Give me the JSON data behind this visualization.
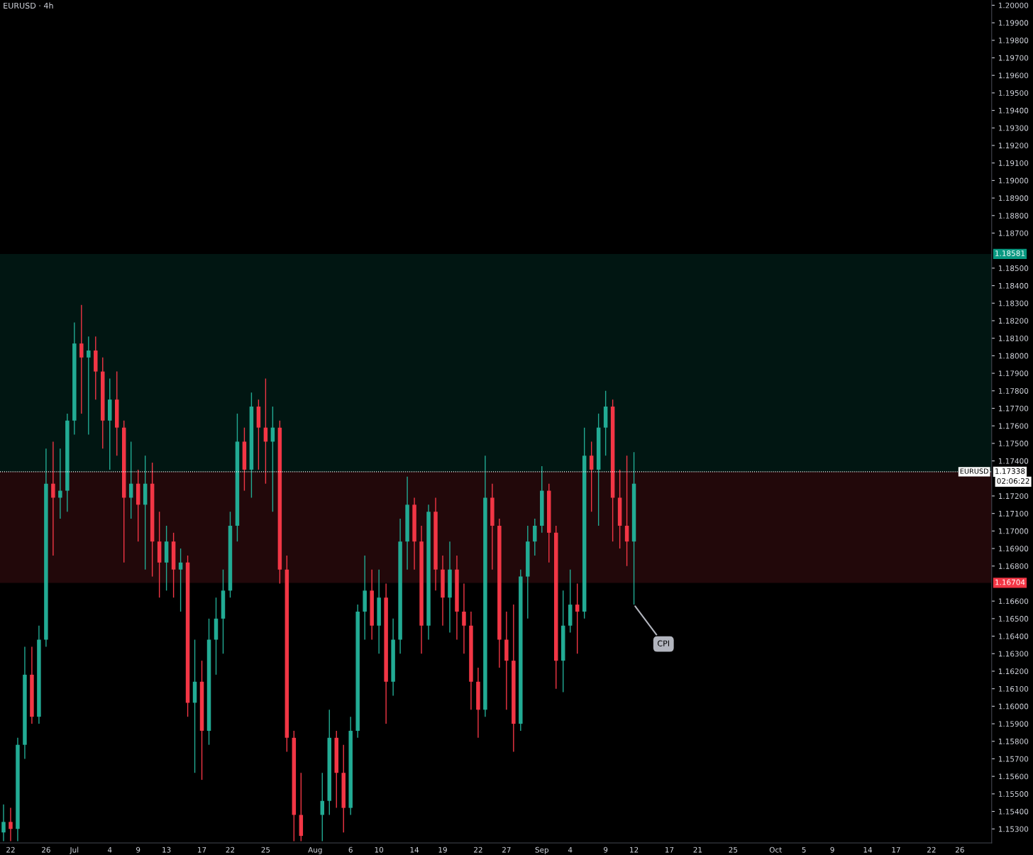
{
  "chart_data": {
    "type": "candlestick",
    "title": "EURUSD · 4h",
    "categories": [
      null,
      "22",
      null,
      null,
      null,
      null,
      "26",
      null,
      null,
      null,
      "Jul",
      null,
      null,
      null,
      null,
      "4",
      null,
      null,
      null,
      "9",
      null,
      null,
      null,
      "13",
      null,
      null,
      null,
      null,
      "17",
      null,
      null,
      null,
      "22",
      null,
      null,
      null,
      null,
      "25",
      null,
      null,
      null,
      null,
      null,
      null,
      "Aug",
      null,
      null,
      null,
      null,
      "6",
      null,
      null,
      null,
      "10",
      null,
      null,
      null,
      null,
      "14",
      null,
      null,
      null,
      "19",
      null,
      null,
      null,
      null,
      "22",
      null,
      null,
      null,
      "27",
      null,
      null,
      null,
      null,
      "Sep",
      null,
      null,
      null,
      "4",
      null,
      null,
      null,
      null,
      "9",
      null,
      null,
      null,
      "12",
      null,
      null,
      null,
      null,
      "17",
      null,
      null,
      null,
      "21",
      null,
      null,
      null,
      null,
      "25",
      null,
      null,
      null,
      null,
      null,
      "Oct",
      null,
      null,
      null,
      "5",
      null,
      null,
      null,
      "9",
      null,
      null,
      null,
      null,
      "14",
      null,
      null,
      null,
      "17",
      null,
      null,
      null,
      null,
      "22",
      null,
      null,
      null,
      "26",
      null,
      null,
      null,
      null
    ],
    "ohlc": [
      [
        1.1528,
        1.1544,
        1.1523,
        1.1534
      ],
      [
        1.1534,
        1.1542,
        1.1523,
        1.153
      ],
      [
        1.153,
        1.1582,
        1.1523,
        1.1578
      ],
      [
        1.1578,
        1.1634,
        1.157,
        1.1618
      ],
      [
        1.1618,
        1.1634,
        1.159,
        1.1594
      ],
      [
        1.1594,
        1.1646,
        1.159,
        1.1638
      ],
      [
        1.1638,
        1.1747,
        1.1634,
        1.1727
      ],
      [
        1.1727,
        1.1751,
        1.1686,
        1.1719
      ],
      [
        1.1719,
        1.1747,
        1.1707,
        1.1723
      ],
      [
        1.1723,
        1.1767,
        1.1711,
        1.1763
      ],
      [
        1.1763,
        1.1819,
        1.1755,
        1.1807
      ],
      [
        1.1807,
        1.1829,
        1.1767,
        1.1799
      ],
      [
        1.1799,
        1.1811,
        1.1755,
        1.1803
      ],
      [
        1.1803,
        1.1811,
        1.1775,
        1.1791
      ],
      [
        1.1791,
        1.1799,
        1.1747,
        1.1763
      ],
      [
        1.1763,
        1.1787,
        1.1735,
        1.1775
      ],
      [
        1.1775,
        1.1791,
        1.1743,
        1.1759
      ],
      [
        1.1759,
        1.1763,
        1.1682,
        1.1719
      ],
      [
        1.1719,
        1.1751,
        1.1707,
        1.1727
      ],
      [
        1.1727,
        1.1735,
        1.1694,
        1.1715
      ],
      [
        1.1715,
        1.1743,
        1.1678,
        1.1727
      ],
      [
        1.1727,
        1.1739,
        1.1674,
        1.1694
      ],
      [
        1.1694,
        1.1711,
        1.1662,
        1.1682
      ],
      [
        1.1682,
        1.1703,
        1.1666,
        1.1694
      ],
      [
        1.1694,
        1.1699,
        1.1662,
        1.1678
      ],
      [
        1.1678,
        1.169,
        1.1654,
        1.1682
      ],
      [
        1.1682,
        1.1686,
        1.1594,
        1.1602
      ],
      [
        1.1602,
        1.1638,
        1.1562,
        1.1614
      ],
      [
        1.1614,
        1.1626,
        1.1558,
        1.1586
      ],
      [
        1.1586,
        1.165,
        1.1578,
        1.1638
      ],
      [
        1.1638,
        1.1662,
        1.1618,
        1.165
      ],
      [
        1.165,
        1.1678,
        1.163,
        1.1666
      ],
      [
        1.1666,
        1.1711,
        1.1662,
        1.1703
      ],
      [
        1.1703,
        1.1767,
        1.1694,
        1.1751
      ],
      [
        1.1751,
        1.1759,
        1.1723,
        1.1735
      ],
      [
        1.1735,
        1.1779,
        1.1719,
        1.1771
      ],
      [
        1.1771,
        1.1775,
        1.1735,
        1.1759
      ],
      [
        1.1759,
        1.1787,
        1.1727,
        1.1751
      ],
      [
        1.1751,
        1.1771,
        1.1711,
        1.1759
      ],
      [
        1.1759,
        1.1763,
        1.167,
        1.1678
      ],
      [
        1.1678,
        1.1686,
        1.1574,
        1.1582
      ],
      [
        1.1582,
        1.1586,
        1.1523,
        1.1538
      ],
      [
        1.1538,
        1.1562,
        1.1523,
        1.1526
      ],
      null,
      null,
      [
        1.1538,
        1.1562,
        1.1523,
        1.1546
      ],
      [
        1.1546,
        1.1598,
        1.1538,
        1.1582
      ],
      [
        1.1582,
        1.1586,
        1.1542,
        1.1562
      ],
      [
        1.1562,
        1.1578,
        1.1528,
        1.1542
      ],
      [
        1.1542,
        1.1594,
        1.1538,
        1.1586
      ],
      [
        1.1586,
        1.1658,
        1.1582,
        1.1654
      ],
      [
        1.1654,
        1.1686,
        1.1638,
        1.1666
      ],
      [
        1.1666,
        1.1678,
        1.1638,
        1.1646
      ],
      [
        1.1646,
        1.1678,
        1.163,
        1.1662
      ],
      [
        1.1662,
        1.167,
        1.159,
        1.1614
      ],
      [
        1.1614,
        1.165,
        1.1606,
        1.1638
      ],
      [
        1.1638,
        1.1707,
        1.163,
        1.1694
      ],
      [
        1.1694,
        1.1731,
        1.1678,
        1.1715
      ],
      [
        1.1715,
        1.1719,
        1.1678,
        1.1694
      ],
      [
        1.1694,
        1.1703,
        1.163,
        1.1646
      ],
      [
        1.1646,
        1.1715,
        1.1638,
        1.1711
      ],
      [
        1.1711,
        1.1719,
        1.1666,
        1.1678
      ],
      [
        1.1678,
        1.1686,
        1.1646,
        1.1662
      ],
      [
        1.1662,
        1.1694,
        1.1642,
        1.1678
      ],
      [
        1.1678,
        1.1686,
        1.1638,
        1.1654
      ],
      [
        1.1654,
        1.167,
        1.163,
        1.1646
      ],
      [
        1.1646,
        1.1654,
        1.1598,
        1.1614
      ],
      [
        1.1614,
        1.1622,
        1.1582,
        1.1598
      ],
      [
        1.1598,
        1.1743,
        1.1594,
        1.1719
      ],
      [
        1.1719,
        1.1727,
        1.1678,
        1.1703
      ],
      [
        1.1703,
        1.1707,
        1.1622,
        1.1638
      ],
      [
        1.1638,
        1.1654,
        1.1598,
        1.1626
      ],
      [
        1.1626,
        1.1658,
        1.1574,
        1.159
      ],
      [
        1.159,
        1.1678,
        1.1586,
        1.1674
      ],
      [
        1.1674,
        1.1703,
        1.165,
        1.1694
      ],
      [
        1.1694,
        1.1707,
        1.1686,
        1.1703
      ],
      [
        1.1703,
        1.1737,
        1.1699,
        1.1723
      ],
      [
        1.1723,
        1.1727,
        1.1682,
        1.1699
      ],
      [
        1.1699,
        1.1703,
        1.161,
        1.1626
      ],
      [
        1.1626,
        1.1666,
        1.1608,
        1.1646
      ],
      [
        1.1646,
        1.1678,
        1.1642,
        1.1658
      ],
      [
        1.1658,
        1.167,
        1.163,
        1.1654
      ],
      [
        1.1654,
        1.1759,
        1.165,
        1.1743
      ],
      [
        1.1743,
        1.1751,
        1.1711,
        1.1735
      ],
      [
        1.1735,
        1.1767,
        1.1703,
        1.1759
      ],
      [
        1.1759,
        1.178,
        1.1743,
        1.1771
      ],
      [
        1.1771,
        1.1775,
        1.1694,
        1.1719
      ],
      [
        1.1719,
        1.1735,
        1.169,
        1.1703
      ],
      [
        1.1703,
        1.1743,
        1.168,
        1.1694
      ],
      [
        1.1694,
        1.1745,
        1.1658,
        1.1727
      ],
      null,
      null,
      null,
      null,
      null,
      null,
      null,
      null,
      null,
      null,
      null,
      null,
      null,
      null,
      null,
      null,
      null,
      null,
      null,
      null,
      null,
      null,
      null,
      null,
      null,
      null,
      null,
      null,
      null,
      null,
      null,
      null,
      null,
      null,
      null,
      null,
      null,
      null,
      null,
      null,
      null,
      null,
      null,
      null,
      null,
      null,
      null,
      null,
      null,
      null
    ],
    "colors": [
      "#22ab94",
      "#f23645",
      "#22ab94",
      "#22ab94",
      "#f23645",
      "#22ab94",
      "#22ab94",
      "#f23645",
      "#22ab94",
      "#22ab94",
      "#22ab94",
      "#f23645",
      "#22ab94",
      "#f23645",
      "#f23645",
      "#22ab94",
      "#f23645",
      "#f23645",
      "#22ab94",
      "#f23645",
      "#22ab94",
      "#f23645",
      "#f23645",
      "#22ab94",
      "#f23645",
      "#22ab94",
      "#f23645",
      "#22ab94",
      "#f23645",
      "#22ab94",
      "#22ab94",
      "#22ab94",
      "#22ab94",
      "#22ab94",
      "#f23645",
      "#22ab94",
      "#f23645",
      "#f23645",
      "#22ab94",
      "#f23645",
      "#f23645",
      "#f23645",
      "#f23645",
      null,
      null,
      "#22ab94",
      "#22ab94",
      "#f23645",
      "#f23645",
      "#22ab94",
      "#22ab94",
      "#22ab94",
      "#f23645",
      "#22ab94",
      "#f23645",
      "#22ab94",
      "#22ab94",
      "#22ab94",
      "#f23645",
      "#f23645",
      "#22ab94",
      "#f23645",
      "#f23645",
      "#22ab94",
      "#f23645",
      "#f23645",
      "#f23645",
      "#f23645",
      "#22ab94",
      "#f23645",
      "#f23645",
      "#f23645",
      "#f23645",
      "#22ab94",
      "#22ab94",
      "#22ab94",
      "#22ab94",
      "#f23645",
      "#f23645",
      "#22ab94",
      "#22ab94",
      "#f23645",
      "#22ab94",
      "#f23645",
      "#22ab94",
      "#22ab94",
      "#f23645",
      "#f23645",
      "#f23645",
      "#22ab94",
      null,
      null,
      null,
      null,
      null,
      null,
      null,
      null,
      null,
      null,
      null,
      null,
      null,
      null,
      null,
      null,
      null,
      null,
      null,
      null,
      null,
      null,
      null,
      null,
      null,
      null,
      null,
      null,
      null,
      null,
      null,
      null,
      null,
      null,
      null,
      null,
      null,
      null,
      null,
      null,
      null,
      null,
      null,
      null,
      null,
      null,
      null,
      null,
      null,
      null
    ],
    "ylim": [
      1.1522,
      1.2003
    ],
    "yticks": [
      {
        "value": 1.153,
        "label": "1.15300"
      },
      {
        "value": 1.154,
        "label": "1.15400"
      },
      {
        "value": 1.155,
        "label": "1.15500"
      },
      {
        "value": 1.156,
        "label": "1.15600"
      },
      {
        "value": 1.157,
        "label": "1.15700"
      },
      {
        "value": 1.158,
        "label": "1.15800"
      },
      {
        "value": 1.159,
        "label": "1.15900"
      },
      {
        "value": 1.16,
        "label": "1.16000"
      },
      {
        "value": 1.161,
        "label": "1.16100"
      },
      {
        "value": 1.162,
        "label": "1.16200"
      },
      {
        "value": 1.163,
        "label": "1.16300"
      },
      {
        "value": 1.164,
        "label": "1.16400"
      },
      {
        "value": 1.165,
        "label": "1.16500"
      },
      {
        "value": 1.166,
        "label": "1.16600"
      },
      {
        "value": 1.168,
        "label": "1.16800"
      },
      {
        "value": 1.169,
        "label": "1.16900"
      },
      {
        "value": 1.17,
        "label": "1.17000"
      },
      {
        "value": 1.171,
        "label": "1.17100"
      },
      {
        "value": 1.172,
        "label": "1.17200"
      },
      {
        "value": 1.174,
        "label": "1.17400"
      },
      {
        "value": 1.175,
        "label": "1.17500"
      },
      {
        "value": 1.176,
        "label": "1.17600"
      },
      {
        "value": 1.177,
        "label": "1.17700"
      },
      {
        "value": 1.178,
        "label": "1.17800"
      },
      {
        "value": 1.179,
        "label": "1.17900"
      },
      {
        "value": 1.18,
        "label": "1.18000"
      },
      {
        "value": 1.181,
        "label": "1.18100"
      },
      {
        "value": 1.182,
        "label": "1.18200"
      },
      {
        "value": 1.183,
        "label": "1.18300"
      },
      {
        "value": 1.184,
        "label": "1.18400"
      },
      {
        "value": 1.185,
        "label": "1.18500"
      },
      {
        "value": 1.187,
        "label": "1.18700"
      },
      {
        "value": 1.188,
        "label": "1.18800"
      },
      {
        "value": 1.189,
        "label": "1.18900"
      },
      {
        "value": 1.19,
        "label": "1.19000"
      },
      {
        "value": 1.191,
        "label": "1.19100"
      },
      {
        "value": 1.192,
        "label": "1.19200"
      },
      {
        "value": 1.193,
        "label": "1.19300"
      },
      {
        "value": 1.194,
        "label": "1.19400"
      },
      {
        "value": 1.195,
        "label": "1.19500"
      },
      {
        "value": 1.196,
        "label": "1.19600"
      },
      {
        "value": 1.197,
        "label": "1.19700"
      },
      {
        "value": 1.198,
        "label": "1.19800"
      },
      {
        "value": 1.199,
        "label": "1.19900"
      },
      {
        "value": 1.2,
        "label": "1.20000"
      }
    ],
    "bands": [
      {
        "axis": "y",
        "from": 1.17338,
        "to": 1.18581,
        "label": "1.18581",
        "color": "#089981"
      },
      {
        "axis": "y",
        "from": 1.17338,
        "to": 1.16704,
        "label": "1.16704",
        "color": "#f23645"
      }
    ],
    "ref_lines": [
      {
        "axis": "y",
        "value": 1.17338,
        "label": "1.17338",
        "color": "#ffffff",
        "line_style": "dotted"
      }
    ],
    "annotations": [
      "EURUSD",
      "02:06:22",
      {
        "text": "CPI",
        "x": "12",
        "y": 1.1658
      }
    ],
    "grid": false
  }
}
